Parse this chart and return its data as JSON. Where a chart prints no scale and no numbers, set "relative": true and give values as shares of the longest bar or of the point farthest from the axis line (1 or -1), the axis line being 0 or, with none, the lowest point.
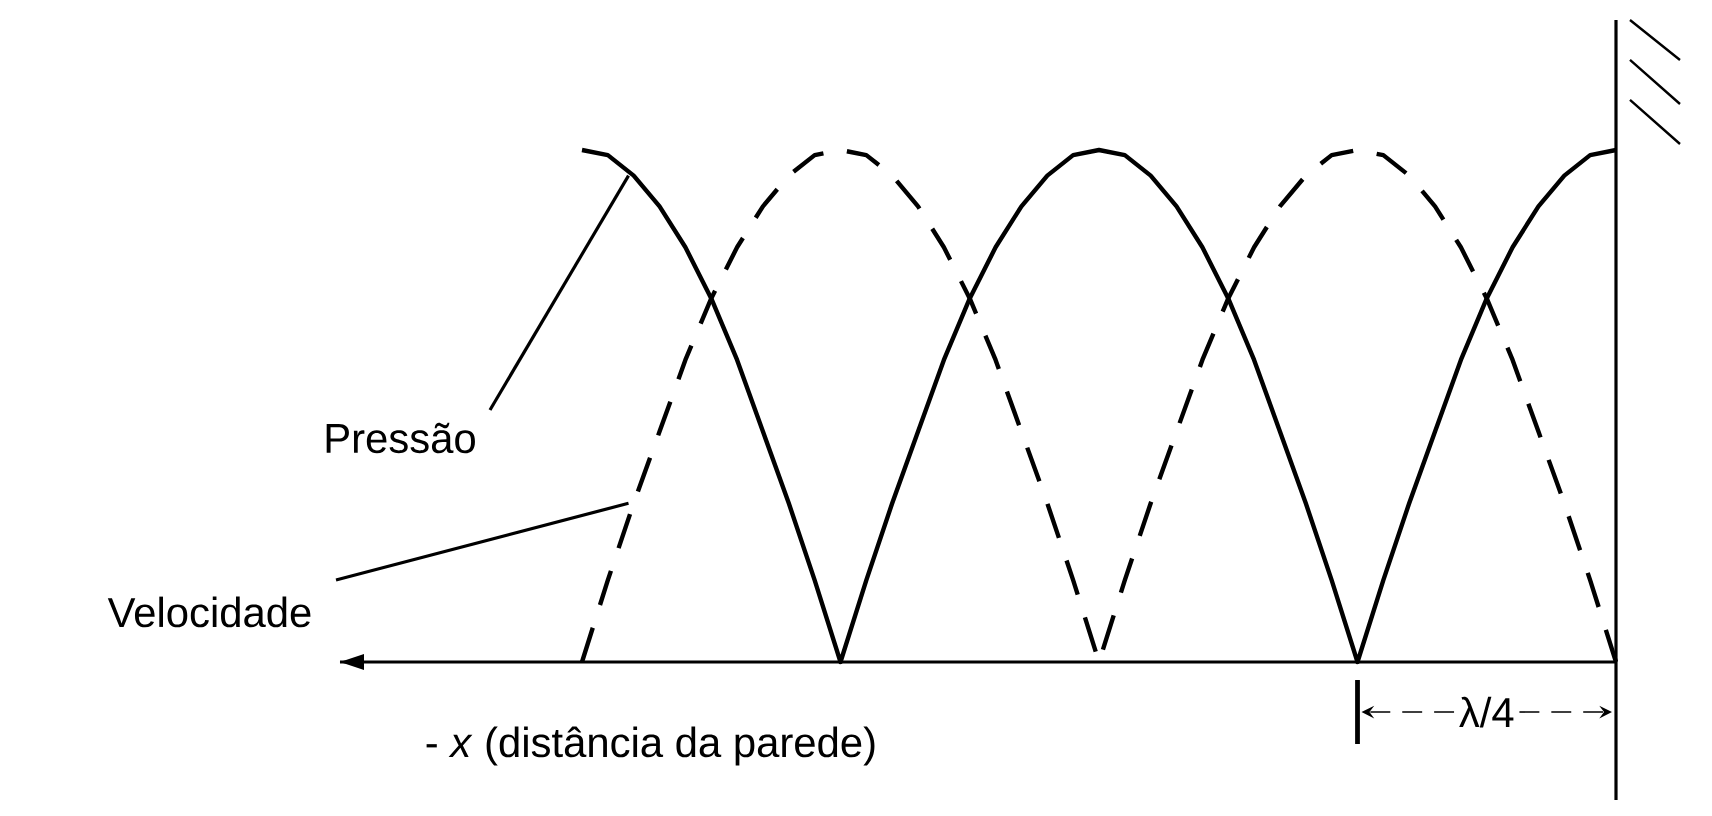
{
  "chart_data": {
    "type": "line",
    "relative": true,
    "xlabel": "- *x* (distância da parede)",
    "categories": [
      null,
      null,
      null,
      null,
      null,
      null,
      null,
      null,
      null,
      null,
      null,
      null,
      null,
      null,
      null,
      null,
      null,
      null,
      null,
      null,
      null,
      null,
      null,
      null,
      null,
      null,
      null,
      null,
      null,
      null,
      null,
      null,
      null,
      null,
      null,
      null,
      null,
      null,
      null,
      null,
      null
    ],
    "series": [
      {
        "name": "Pressão",
        "color": "#000000",
        "line_style": "solid",
        "values": [
          1,
          0.99,
          0.95,
          0.89,
          0.81,
          0.71,
          0.59,
          0.45,
          0.31,
          0.16,
          0,
          0.16,
          0.31,
          0.45,
          0.59,
          0.71,
          0.81,
          0.89,
          0.95,
          0.99,
          1,
          0.99,
          0.95,
          0.89,
          0.81,
          0.71,
          0.59,
          0.45,
          0.31,
          0.16,
          0,
          0.16,
          0.31,
          0.45,
          0.59,
          0.71,
          0.81,
          0.89,
          0.95,
          0.99,
          1
        ]
      },
      {
        "name": "Velocidade",
        "color": "#000000",
        "line_style": "dashed",
        "values": [
          0,
          0.16,
          0.31,
          0.45,
          0.59,
          0.71,
          0.81,
          0.89,
          0.95,
          0.99,
          1,
          0.99,
          0.95,
          0.89,
          0.81,
          0.71,
          0.59,
          0.45,
          0.31,
          0.16,
          0,
          0.16,
          0.31,
          0.45,
          0.59,
          0.71,
          0.81,
          0.89,
          0.95,
          0.99,
          1,
          0.99,
          0.95,
          0.89,
          0.81,
          0.71,
          0.59,
          0.45,
          0.31,
          0.16,
          0
        ]
      }
    ],
    "annotations": [
      "λ/4"
    ],
    "marker": "none",
    "legend": false
  }
}
